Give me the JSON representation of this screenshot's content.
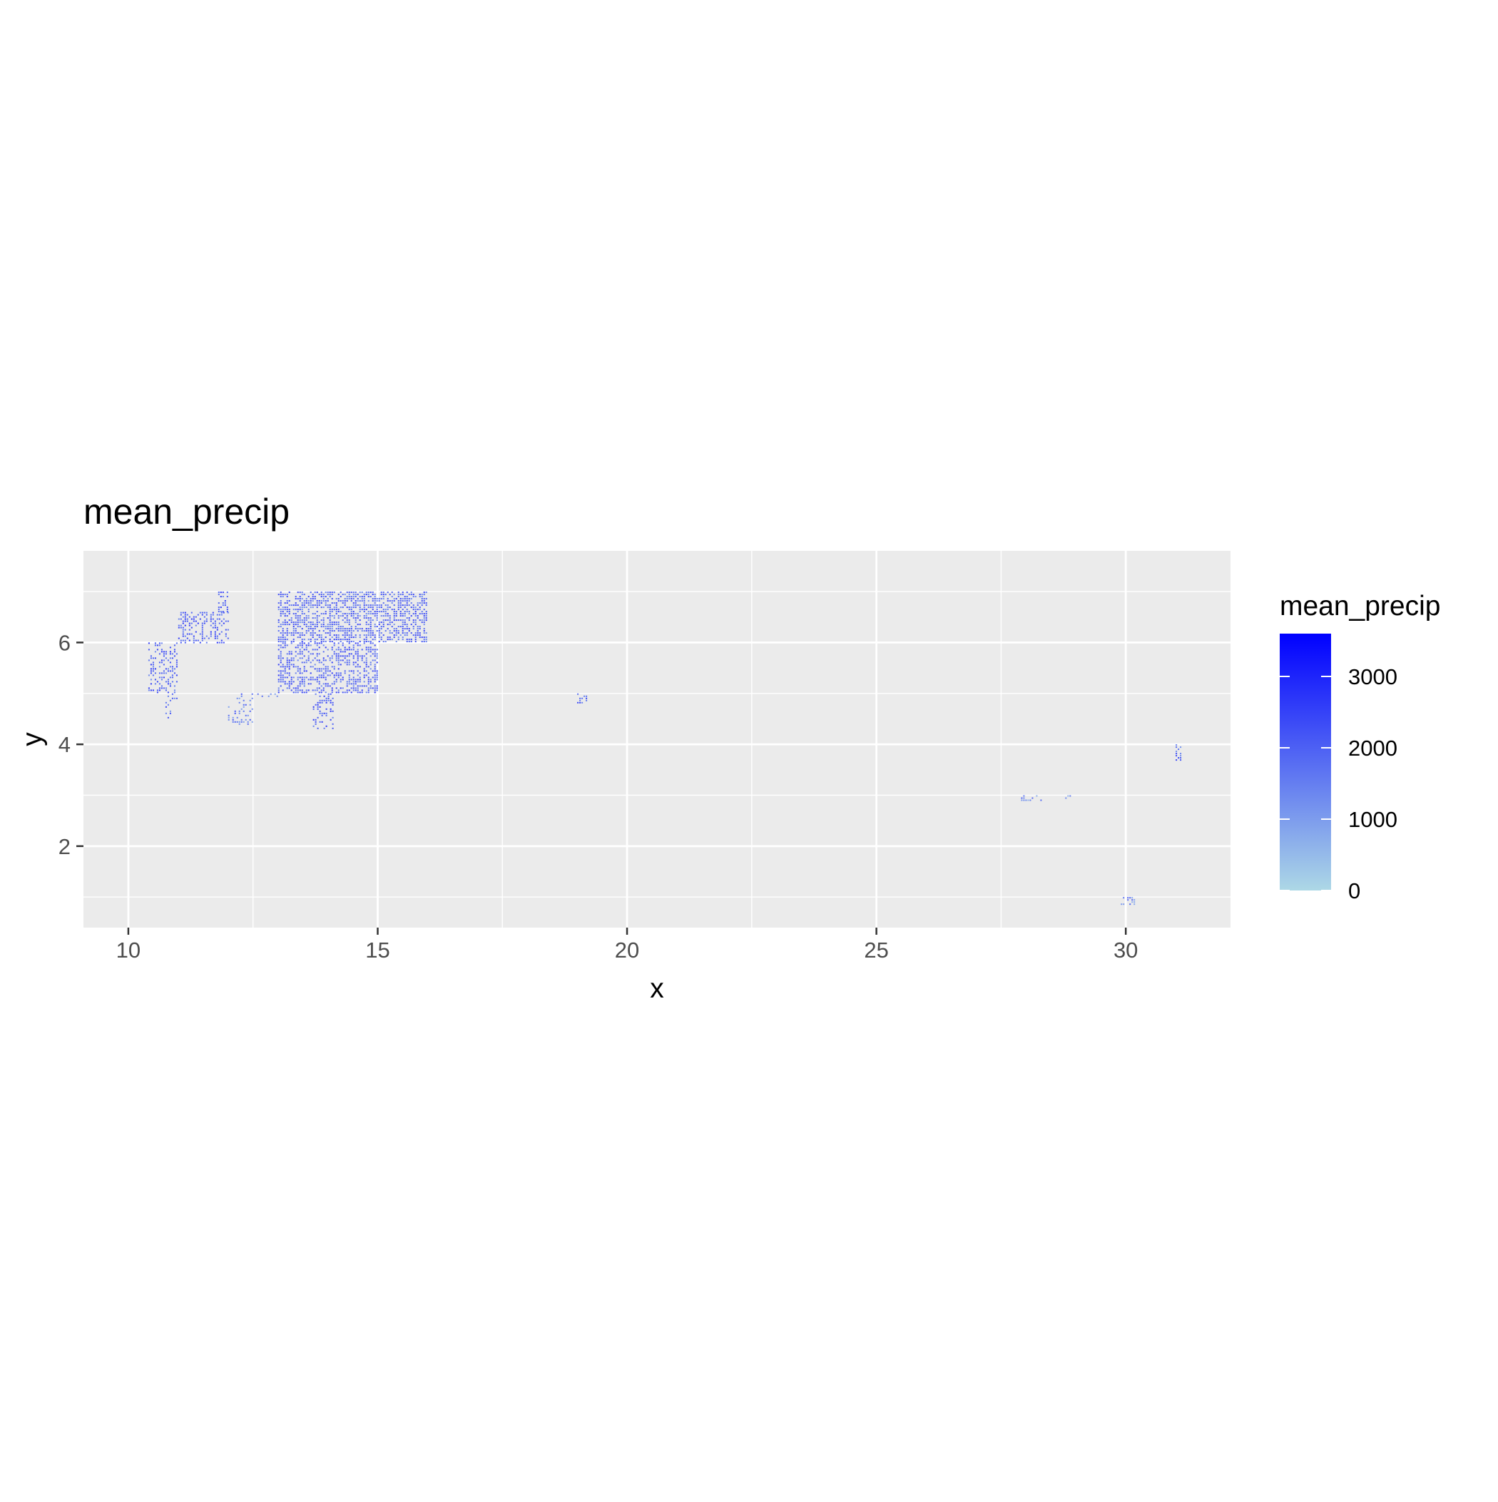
{
  "chart_data": {
    "type": "heatmap",
    "title": "mean_precip",
    "xlabel": "x",
    "ylabel": "y",
    "xlim": [
      9.1,
      32.1
    ],
    "ylim": [
      0.4,
      7.8
    ],
    "x_ticks": [
      10,
      15,
      20,
      25,
      30
    ],
    "y_ticks": [
      2,
      4,
      6
    ],
    "grid": true,
    "panel_background": "#ebebeb",
    "grid_color": "#ffffff",
    "legend": {
      "title": "mean_precip",
      "position": "right",
      "range": [
        0,
        3600
      ],
      "ticks": [
        0,
        1000,
        2000,
        3000
      ],
      "color_low": "#add8e6",
      "color_high": "#0000ff"
    },
    "regions": [
      {
        "x0": 13.0,
        "x1": 16.0,
        "y0": 6.0,
        "y1": 7.0,
        "density": 0.55,
        "value": 1900
      },
      {
        "x0": 13.0,
        "x1": 15.0,
        "y0": 5.0,
        "y1": 6.0,
        "density": 0.45,
        "value": 2000
      },
      {
        "x0": 11.0,
        "x1": 12.0,
        "y0": 6.0,
        "y1": 6.6,
        "density": 0.4,
        "value": 2100
      },
      {
        "x0": 11.8,
        "x1": 12.0,
        "y0": 6.6,
        "y1": 7.0,
        "density": 0.4,
        "value": 2200
      },
      {
        "x0": 10.4,
        "x1": 11.0,
        "y0": 5.0,
        "y1": 6.0,
        "density": 0.35,
        "value": 2000
      },
      {
        "x0": 10.7,
        "x1": 11.0,
        "y0": 4.5,
        "y1": 5.0,
        "density": 0.15,
        "value": 1800
      },
      {
        "x0": 12.0,
        "x1": 12.5,
        "y0": 4.4,
        "y1": 5.0,
        "density": 0.2,
        "value": 1500
      },
      {
        "x0": 12.5,
        "x1": 13.0,
        "y0": 4.9,
        "y1": 5.0,
        "density": 0.3,
        "value": 1400
      },
      {
        "x0": 13.7,
        "x1": 14.1,
        "y0": 4.3,
        "y1": 5.0,
        "density": 0.35,
        "value": 2100
      },
      {
        "x0": 19.0,
        "x1": 19.2,
        "y0": 4.8,
        "y1": 5.0,
        "density": 0.4,
        "value": 1900
      },
      {
        "x0": 27.9,
        "x1": 28.3,
        "y0": 2.9,
        "y1": 3.0,
        "density": 0.3,
        "value": 1300
      },
      {
        "x0": 28.7,
        "x1": 28.9,
        "y0": 2.95,
        "y1": 3.0,
        "density": 0.3,
        "value": 1300
      },
      {
        "x0": 29.9,
        "x1": 30.2,
        "y0": 0.85,
        "y1": 1.0,
        "density": 0.4,
        "value": 1400
      },
      {
        "x0": 31.0,
        "x1": 31.1,
        "y0": 3.7,
        "y1": 4.0,
        "density": 0.3,
        "value": 1800
      }
    ]
  }
}
